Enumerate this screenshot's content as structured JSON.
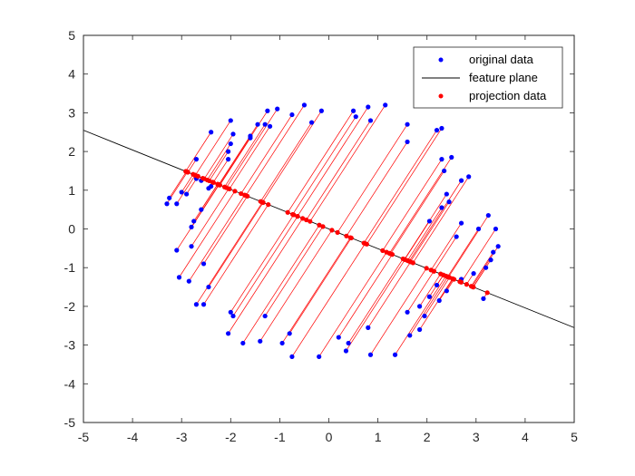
{
  "chart_data": {
    "type": "scatter",
    "xlim": [
      -5,
      5
    ],
    "ylim": [
      -5,
      5
    ],
    "xticks": [
      -5,
      -4,
      -3,
      -2,
      -1,
      0,
      1,
      2,
      3,
      4,
      5
    ],
    "yticks": [
      -5,
      -4,
      -3,
      -2,
      -1,
      0,
      1,
      2,
      3,
      4,
      5
    ],
    "grid": false,
    "legend_location": "top-right",
    "legend": [
      "original data",
      "feature plane",
      "projection data"
    ],
    "colors": {
      "original": "#0000ff",
      "plane": "#000000",
      "projection": "#ff0000",
      "connector": "#ff0000"
    },
    "feature_plane": {
      "x": [
        -5,
        5
      ],
      "y": [
        2.55,
        -2.55
      ]
    },
    "original_data": {
      "x": [
        -2.4,
        -2.0,
        -1.95,
        -1.6,
        -1.45,
        -1.2,
        -0.5,
        -0.15,
        0.5,
        0.8,
        1.15,
        -2.7,
        -2.45,
        -2.0,
        -1.6,
        -1.25,
        -1.05,
        -0.75,
        -0.35,
        0.55,
        0.85,
        1.6,
        2.3,
        -2.7,
        -2.05,
        -1.3,
        1.6,
        2.2,
        -2.6,
        -2.05,
        2.3,
        2.5,
        -3.0,
        -2.9,
        -2.4,
        2.35,
        2.7,
        2.85,
        -3.1,
        -3.25,
        2.3,
        -3.3,
        2.4,
        -2.6,
        2.45,
        -2.75,
        3.25,
        -2.8,
        2.05,
        2.7,
        3.05,
        3.4,
        2.6,
        -3.1,
        3.45,
        -2.8,
        3.35,
        -2.55,
        3.3,
        -3.05,
        3.2,
        -2.85,
        2.95,
        -2.45,
        2.7,
        -2.55,
        2.2,
        2.4,
        1.6,
        1.85,
        -2.7,
        2.05,
        2.25,
        3.15,
        1.95,
        1.65,
        -2.0,
        -1.95,
        -1.3,
        -2.05,
        1.85,
        -1.4,
        0.8,
        -1.75,
        0.4,
        -0.95,
        -0.8,
        0.2,
        -0.75,
        1.35,
        -0.2,
        0.85,
        0.35
      ],
      "y": [
        2.5,
        2.8,
        2.45,
        2.4,
        2.7,
        2.65,
        3.2,
        3.05,
        3.05,
        3.15,
        3.2,
        1.8,
        1.05,
        2.2,
        2.35,
        3.05,
        3.1,
        2.95,
        2.75,
        2.9,
        2.8,
        2.7,
        2.6,
        1.3,
        1.8,
        2.7,
        2.25,
        2.55,
        1.25,
        2.0,
        1.8,
        1.85,
        0.95,
        0.9,
        1.1,
        1.5,
        1.25,
        1.35,
        0.65,
        0.8,
        0.55,
        0.65,
        0.9,
        0.5,
        0.7,
        0.2,
        0.35,
        0.05,
        0.2,
        0.15,
        0.0,
        0.0,
        -0.2,
        -0.55,
        -0.45,
        -0.45,
        -0.6,
        -0.9,
        -0.8,
        -1.25,
        -1.0,
        -1.35,
        -1.15,
        -1.5,
        -1.3,
        -1.95,
        -1.45,
        -1.6,
        -2.15,
        -2.0,
        -1.95,
        -1.75,
        -1.85,
        -1.8,
        -2.25,
        -2.75,
        -2.15,
        -2.25,
        -2.25,
        -2.7,
        -2.6,
        -2.9,
        -2.55,
        -2.95,
        -2.95,
        -2.95,
        -2.7,
        -2.8,
        -3.3,
        -3.25,
        -3.3,
        -3.25,
        -3.15
      ]
    }
  }
}
